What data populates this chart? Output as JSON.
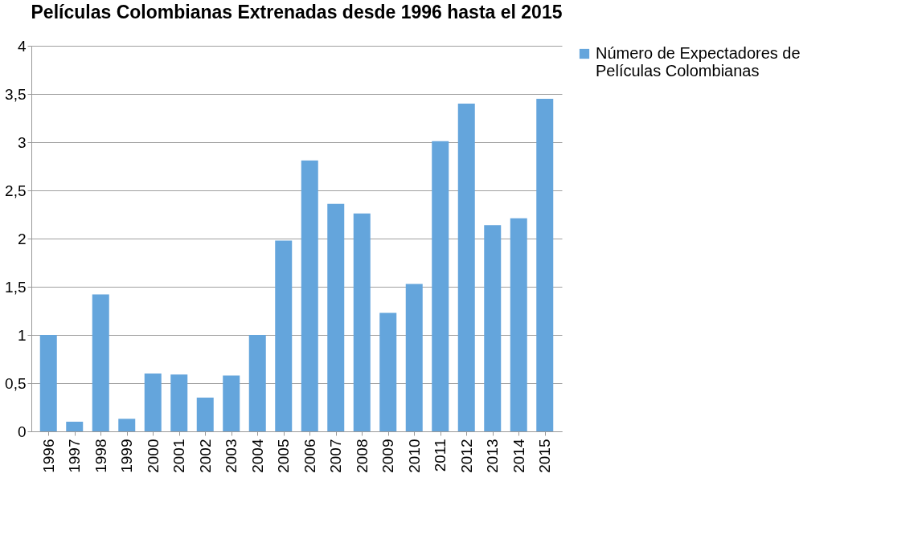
{
  "chart_data": {
    "type": "bar",
    "title": "Películas Colombianas Extrenadas desde 1996  hasta el 2015",
    "categories": [
      "1996",
      "1997",
      "1998",
      "1999",
      "2000",
      "2001",
      "2002",
      "2003",
      "2004",
      "2005",
      "2006",
      "2007",
      "2008",
      "2009",
      "2010",
      "2011",
      "2012",
      "2013",
      "2014",
      "2015"
    ],
    "series": [
      {
        "name": "Número de Expectadores de Películas Colombianas",
        "color": "#64a5dc",
        "values": [
          1.0,
          0.1,
          1.42,
          0.13,
          0.6,
          0.59,
          0.35,
          0.58,
          1.0,
          1.98,
          2.81,
          2.36,
          2.26,
          1.23,
          1.53,
          3.01,
          3.4,
          2.14,
          2.21,
          3.45
        ]
      }
    ],
    "ylim": [
      0,
      4
    ],
    "yticks": [
      0,
      {
        "value": 0.5,
        "label": "0,5"
      },
      1,
      {
        "value": 1.5,
        "label": "1,5"
      },
      2,
      {
        "value": 2.5,
        "label": "2,5"
      },
      3,
      {
        "value": 3.5,
        "label": "3,5"
      },
      4
    ],
    "grid": "y",
    "legend": "right"
  }
}
